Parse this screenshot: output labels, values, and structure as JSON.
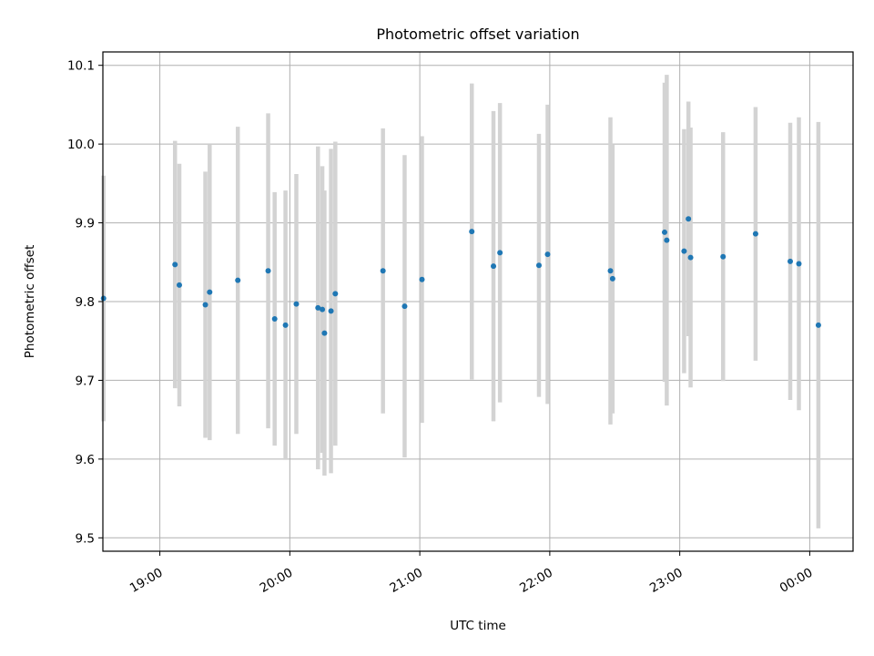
{
  "chart_data": {
    "type": "scatter",
    "title": "Photometric offset variation",
    "xlabel": "UTC time",
    "ylabel": "Photometric offset",
    "xlim": [
      "18:35",
      "00:20"
    ],
    "ylim": [
      9.483,
      10.117
    ],
    "xticks": [
      "19:00",
      "20:00",
      "21:00",
      "22:00",
      "23:00",
      "00:00"
    ],
    "yticks": [
      "9.5",
      "9.6",
      "9.7",
      "9.8",
      "9.9",
      "10.0",
      "10.1"
    ],
    "grid": true,
    "colors": {
      "marker": "#1f77b4",
      "errorbar": "#d3d3d3",
      "grid": "#b0b0b0"
    },
    "series": [
      {
        "points": [
          {
            "time": "18:34",
            "y": 9.804,
            "err": 0.156
          },
          {
            "time": "19:07",
            "y": 9.847,
            "err": 0.157
          },
          {
            "time": "19:09",
            "y": 9.821,
            "err": 0.154
          },
          {
            "time": "19:21",
            "y": 9.796,
            "err": 0.169
          },
          {
            "time": "19:23",
            "y": 9.812,
            "err": 0.188
          },
          {
            "time": "19:36",
            "y": 9.827,
            "err": 0.195
          },
          {
            "time": "19:50",
            "y": 9.839,
            "err": 0.2
          },
          {
            "time": "19:53",
            "y": 9.778,
            "err": 0.161
          },
          {
            "time": "19:58",
            "y": 9.77,
            "err": 0.171
          },
          {
            "time": "20:03",
            "y": 9.797,
            "err": 0.165
          },
          {
            "time": "20:13",
            "y": 9.792,
            "err": 0.205
          },
          {
            "time": "20:15",
            "y": 9.79,
            "err": 0.182
          },
          {
            "time": "20:16",
            "y": 9.76,
            "err": 0.181
          },
          {
            "time": "20:19",
            "y": 9.788,
            "err": 0.206
          },
          {
            "time": "20:21",
            "y": 9.81,
            "err": 0.193
          },
          {
            "time": "20:43",
            "y": 9.839,
            "err": 0.181
          },
          {
            "time": "20:53",
            "y": 9.794,
            "err": 0.192
          },
          {
            "time": "21:01",
            "y": 9.828,
            "err": 0.182
          },
          {
            "time": "21:24",
            "y": 9.889,
            "err": 0.188
          },
          {
            "time": "21:34",
            "y": 9.845,
            "err": 0.197
          },
          {
            "time": "21:37",
            "y": 9.862,
            "err": 0.19
          },
          {
            "time": "21:55",
            "y": 9.846,
            "err": 0.167
          },
          {
            "time": "21:59",
            "y": 9.86,
            "err": 0.19
          },
          {
            "time": "22:28",
            "y": 9.839,
            "err": 0.195
          },
          {
            "time": "22:29",
            "y": 9.829,
            "err": 0.171
          },
          {
            "time": "22:53",
            "y": 9.888,
            "err": 0.19
          },
          {
            "time": "22:54",
            "y": 9.878,
            "err": 0.21
          },
          {
            "time": "23:02",
            "y": 9.864,
            "err": 0.155
          },
          {
            "time": "23:04",
            "y": 9.905,
            "err": 0.149
          },
          {
            "time": "23:05",
            "y": 9.856,
            "err": 0.165
          },
          {
            "time": "23:20",
            "y": 9.857,
            "err": 0.158
          },
          {
            "time": "23:35",
            "y": 9.886,
            "err": 0.161
          },
          {
            "time": "23:51",
            "y": 9.851,
            "err": 0.176
          },
          {
            "time": "23:55",
            "y": 9.848,
            "err": 0.186
          },
          {
            "time": "00:04",
            "y": 9.77,
            "err": 0.258
          }
        ]
      }
    ]
  }
}
